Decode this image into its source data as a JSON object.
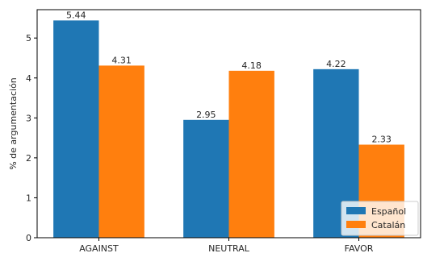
{
  "chart_data": {
    "type": "bar",
    "categories": [
      "AGAINST",
      "NEUTRAL",
      "FAVOR"
    ],
    "series": [
      {
        "name": "Español",
        "values": [
          5.44,
          2.95,
          4.22
        ],
        "color": "#1f77b4"
      },
      {
        "name": "Catalán",
        "values": [
          4.31,
          4.18,
          2.33
        ],
        "color": "#ff7f0e"
      }
    ],
    "data_labels": {
      "Español": [
        "5.44",
        "2.95",
        "4.22"
      ],
      "Catalán": [
        "4.31",
        "4.18",
        "2.33"
      ]
    },
    "title": "",
    "xlabel": "",
    "ylabel": "% de argumentación",
    "ylim": [
      0,
      5.71
    ],
    "yticks": [
      0,
      1,
      2,
      3,
      4,
      5
    ],
    "ytick_labels": [
      "0",
      "1",
      "2",
      "3",
      "4",
      "5"
    ],
    "grid": false,
    "legend_position": "lower-right"
  }
}
